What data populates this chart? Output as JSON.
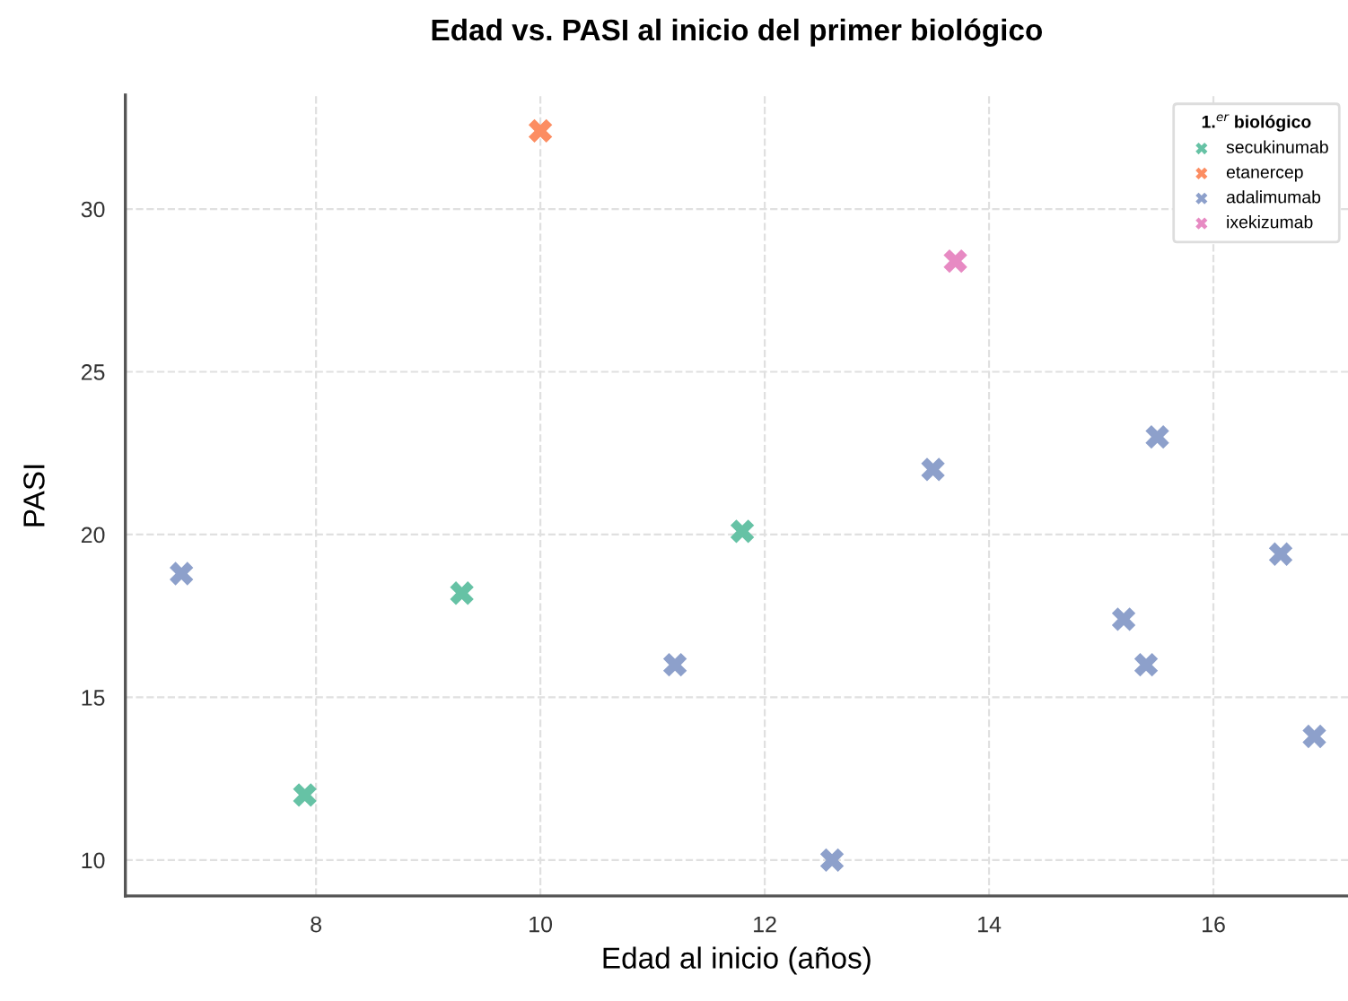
{
  "chart_data": {
    "type": "scatter",
    "title": "Edad vs. PASI al inicio del primer biológico",
    "xlabel": "Edad al inicio (años)",
    "ylabel": "PASI",
    "legend_title": "1.$^{er}$ biológico",
    "xlim": [
      6.3,
      17.2
    ],
    "ylim": [
      8.9,
      33.5
    ],
    "xticks": [
      8,
      10,
      12,
      14,
      16
    ],
    "yticks": [
      10,
      15,
      20,
      25,
      30
    ],
    "grid": true,
    "legend": "top right",
    "marker": "cross",
    "series": [
      {
        "name": "secukinumab",
        "color": "#66c2a5",
        "x": [
          7.9,
          9.3,
          11.8
        ],
        "values": [
          12.0,
          18.2,
          20.1
        ]
      },
      {
        "name": "etanercep",
        "color": "#fc8d62",
        "x": [
          10.0
        ],
        "values": [
          32.4
        ]
      },
      {
        "name": "adalimumab",
        "color": "#8da0cb",
        "x": [
          6.8,
          11.2,
          12.6,
          13.5,
          15.2,
          15.4,
          15.5,
          16.6,
          16.9
        ],
        "values": [
          18.8,
          16.0,
          10.0,
          22.0,
          17.4,
          16.0,
          23.0,
          19.4,
          13.8
        ]
      },
      {
        "name": "ixekizumab",
        "color": "#e78ac3",
        "x": [
          13.7
        ],
        "values": [
          28.4
        ]
      }
    ]
  }
}
